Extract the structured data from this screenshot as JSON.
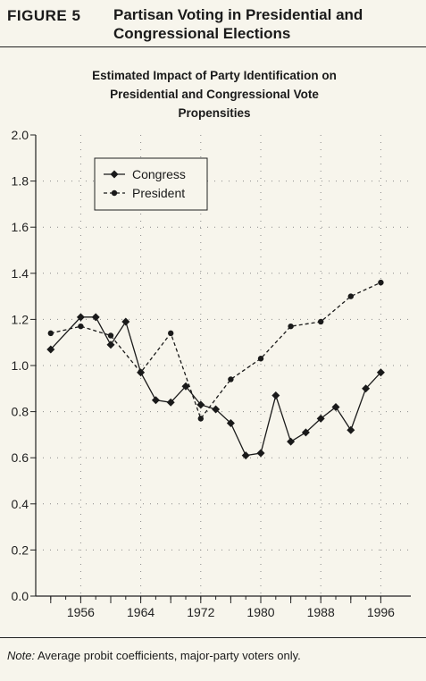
{
  "header": {
    "figure_label": "FIGURE 5",
    "figure_title": "Partisan Voting in Presidential and Congressional Elections"
  },
  "chart_data": {
    "type": "line",
    "title": "Estimated Impact of Party Identification on Presidential and Congressional Vote Propensities",
    "xlabel": "",
    "ylabel": "",
    "ylim": [
      0,
      2
    ],
    "xlim": [
      1950,
      2000
    ],
    "yticks": [
      "0.0",
      "0.2",
      "0.4",
      "0.6",
      "0.8",
      "1.0",
      "1.2",
      "1.4",
      "1.6",
      "1.8",
      "2.0"
    ],
    "xticks": [
      "1956",
      "1964",
      "1972",
      "1980",
      "1988",
      "1996"
    ],
    "grid": true,
    "legend_position": "top-left",
    "series": [
      {
        "name": "Congress",
        "style": "solid",
        "marker": "diamond",
        "x": [
          1952,
          1956,
          1958,
          1960,
          1962,
          1964,
          1966,
          1968,
          1970,
          1972,
          1974,
          1976,
          1978,
          1980,
          1982,
          1984,
          1986,
          1988,
          1990,
          1992,
          1994,
          1996
        ],
        "y": [
          1.07,
          1.21,
          1.21,
          1.09,
          1.19,
          0.97,
          0.85,
          0.84,
          0.91,
          0.83,
          0.81,
          0.75,
          0.61,
          0.62,
          0.87,
          0.67,
          0.71,
          0.77,
          0.82,
          0.72,
          0.9,
          0.97
        ]
      },
      {
        "name": "President",
        "style": "dashed",
        "marker": "dot",
        "x": [
          1952,
          1956,
          1960,
          1964,
          1968,
          1972,
          1976,
          1980,
          1984,
          1988,
          1992,
          1996
        ],
        "y": [
          1.14,
          1.17,
          1.13,
          0.97,
          1.14,
          0.77,
          0.94,
          1.03,
          1.17,
          1.19,
          1.3,
          1.36
        ]
      }
    ]
  },
  "footer": {
    "note_label": "Note:",
    "note_text": " Average probit coefficients, major-party voters only."
  }
}
